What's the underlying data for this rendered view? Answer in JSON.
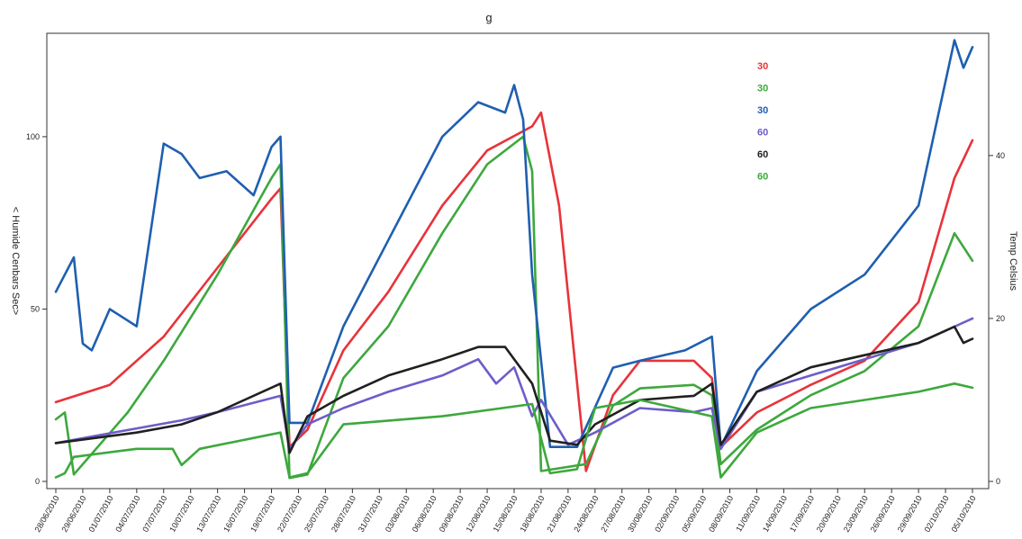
{
  "chart_data": {
    "type": "line",
    "title": "g",
    "ylabel_left": "< Humide Cenbars Sec>",
    "ylabel_right": "Temp Celsius",
    "ylim_left": [
      0,
      130
    ],
    "ylim_right": [
      0,
      55
    ],
    "yticks_left": [
      "0",
      "50",
      "100"
    ],
    "yticks_right": [
      "0",
      "20",
      "40"
    ],
    "x_dates": [
      "28/06/2010",
      "29/06/2010",
      "01/07/2010",
      "04/07/2010",
      "07/07/2010",
      "10/07/2010",
      "13/07/2010",
      "16/07/2010",
      "19/07/2010",
      "22/07/2010",
      "25/07/2010",
      "28/07/2010",
      "31/07/2010",
      "03/08/2010",
      "06/08/2010",
      "09/08/2010",
      "12/08/2010",
      "15/08/2010",
      "18/08/2010",
      "21/08/2010",
      "24/08/2010",
      "27/08/2010",
      "30/08/2010",
      "02/09/2010",
      "05/09/2010",
      "08/09/2010",
      "11/09/2010",
      "14/09/2010",
      "17/09/2010",
      "20/09/2010",
      "23/09/2010",
      "26/09/2010",
      "29/09/2010",
      "02/10/2010",
      "05/10/2010"
    ],
    "x_range": [
      "26/06/2010",
      "06/10/2010"
    ],
    "legend_position": "top-right",
    "series": [
      {
        "name": "30",
        "color": "#e8333a",
        "axis": "left",
        "x": [
          "26/06/2010",
          "02/07/2010",
          "08/07/2010",
          "14/07/2010",
          "20/07/2010",
          "21/07/2010",
          "22/07/2010",
          "24/07/2010",
          "28/07/2010",
          "02/08/2010",
          "08/08/2010",
          "13/08/2010",
          "18/08/2010",
          "19/08/2010",
          "21/08/2010",
          "24/08/2010",
          "27/08/2010",
          "30/08/2010",
          "05/09/2010",
          "07/09/2010",
          "08/09/2010",
          "12/09/2010",
          "18/09/2010",
          "24/09/2010",
          "30/09/2010",
          "04/10/2010",
          "06/10/2010"
        ],
        "y": [
          23,
          28,
          42,
          62,
          82,
          85,
          10,
          15,
          38,
          55,
          80,
          96,
          103,
          107,
          80,
          3,
          25,
          35,
          35,
          30,
          10,
          20,
          28,
          35,
          52,
          88,
          99
        ]
      },
      {
        "name": "30",
        "color": "#3da83d",
        "axis": "left",
        "x": [
          "26/06/2010",
          "27/06/2010",
          "28/06/2010",
          "04/07/2010",
          "08/07/2010",
          "14/07/2010",
          "20/07/2010",
          "21/07/2010",
          "22/07/2010",
          "24/07/2010",
          "28/07/2010",
          "02/08/2010",
          "08/08/2010",
          "13/08/2010",
          "17/08/2010",
          "18/08/2010",
          "19/08/2010",
          "24/08/2010",
          "27/08/2010",
          "30/08/2010",
          "05/09/2010",
          "07/09/2010",
          "08/09/2010",
          "12/09/2010",
          "18/09/2010",
          "24/09/2010",
          "30/09/2010",
          "04/10/2010",
          "06/10/2010"
        ],
        "y": [
          18,
          20,
          2,
          20,
          35,
          60,
          88,
          92,
          1,
          2,
          30,
          45,
          72,
          92,
          100,
          90,
          3,
          5,
          22,
          27,
          28,
          25,
          5,
          15,
          25,
          32,
          45,
          72,
          64
        ]
      },
      {
        "name": "30",
        "color": "#1f5fb0",
        "axis": "left",
        "x": [
          "26/06/2010",
          "28/06/2010",
          "29/06/2010",
          "30/06/2010",
          "02/07/2010",
          "05/07/2010",
          "08/07/2010",
          "10/07/2010",
          "12/07/2010",
          "15/07/2010",
          "18/07/2010",
          "20/07/2010",
          "21/07/2010",
          "22/07/2010",
          "24/07/2010",
          "28/07/2010",
          "02/08/2010",
          "08/08/2010",
          "12/08/2010",
          "15/08/2010",
          "16/08/2010",
          "17/08/2010",
          "18/08/2010",
          "20/08/2010",
          "23/08/2010",
          "27/08/2010",
          "30/08/2010",
          "04/09/2010",
          "07/09/2010",
          "08/09/2010",
          "12/09/2010",
          "18/09/2010",
          "24/09/2010",
          "30/09/2010",
          "04/10/2010",
          "05/10/2010",
          "06/10/2010"
        ],
        "y": [
          55,
          65,
          40,
          38,
          50,
          45,
          98,
          95,
          88,
          90,
          83,
          97,
          100,
          17,
          17,
          45,
          70,
          100,
          110,
          107,
          115,
          105,
          60,
          10,
          10,
          33,
          35,
          38,
          42,
          10,
          32,
          50,
          60,
          80,
          128,
          120,
          126
        ]
      },
      {
        "name": "60",
        "color": "#6b5ec8",
        "axis": "right",
        "x": [
          "26/06/2010",
          "05/07/2010",
          "10/07/2010",
          "14/07/2010",
          "21/07/2010",
          "22/07/2010",
          "24/07/2010",
          "28/07/2010",
          "02/08/2010",
          "08/08/2010",
          "12/08/2010",
          "14/08/2010",
          "16/08/2010",
          "18/08/2010",
          "19/08/2010",
          "22/08/2010",
          "25/08/2010",
          "30/08/2010",
          "05/09/2010",
          "07/09/2010",
          "08/09/2010",
          "12/09/2010",
          "18/09/2010",
          "24/09/2010",
          "30/09/2010",
          "04/10/2010",
          "06/10/2010"
        ],
        "y": [
          4.7,
          6.5,
          7.5,
          8.5,
          10.5,
          4,
          7,
          9,
          11,
          13,
          15,
          12,
          14,
          8,
          10,
          4.5,
          6,
          9,
          8.5,
          9,
          4,
          11,
          13,
          15,
          17,
          19,
          20
        ]
      },
      {
        "name": "60",
        "color": "#202020",
        "axis": "right",
        "x": [
          "26/06/2010",
          "05/07/2010",
          "10/07/2010",
          "14/07/2010",
          "21/07/2010",
          "22/07/2010",
          "24/07/2010",
          "28/07/2010",
          "02/08/2010",
          "08/08/2010",
          "12/08/2010",
          "15/08/2010",
          "18/08/2010",
          "20/08/2010",
          "23/08/2010",
          "25/08/2010",
          "30/08/2010",
          "05/09/2010",
          "07/09/2010",
          "08/09/2010",
          "12/09/2010",
          "18/09/2010",
          "24/09/2010",
          "30/09/2010",
          "04/10/2010",
          "05/10/2010",
          "06/10/2010"
        ],
        "y": [
          4.7,
          6,
          7,
          8.5,
          12,
          3.5,
          8,
          10.5,
          13,
          15,
          16.5,
          16.5,
          12,
          5,
          4.5,
          7,
          10,
          10.5,
          12,
          4.5,
          11,
          14,
          15.5,
          17,
          19,
          17,
          17.5
        ]
      },
      {
        "name": "60",
        "color": "#3da83d",
        "axis": "right",
        "x": [
          "26/06/2010",
          "27/06/2010",
          "28/06/2010",
          "05/07/2010",
          "09/07/2010",
          "10/07/2010",
          "12/07/2010",
          "21/07/2010",
          "22/07/2010",
          "24/07/2010",
          "28/07/2010",
          "08/08/2010",
          "18/08/2010",
          "20/08/2010",
          "23/08/2010",
          "25/08/2010",
          "30/08/2010",
          "07/09/2010",
          "08/09/2010",
          "12/09/2010",
          "18/09/2010",
          "24/09/2010",
          "30/09/2010",
          "04/10/2010",
          "06/10/2010"
        ],
        "y": [
          0.5,
          1,
          3,
          4,
          4,
          2,
          4,
          6,
          0.5,
          1,
          7,
          8,
          9.5,
          1,
          1.5,
          9,
          10,
          8,
          0.5,
          6,
          9,
          10,
          11,
          12,
          11.5
        ]
      }
    ]
  }
}
